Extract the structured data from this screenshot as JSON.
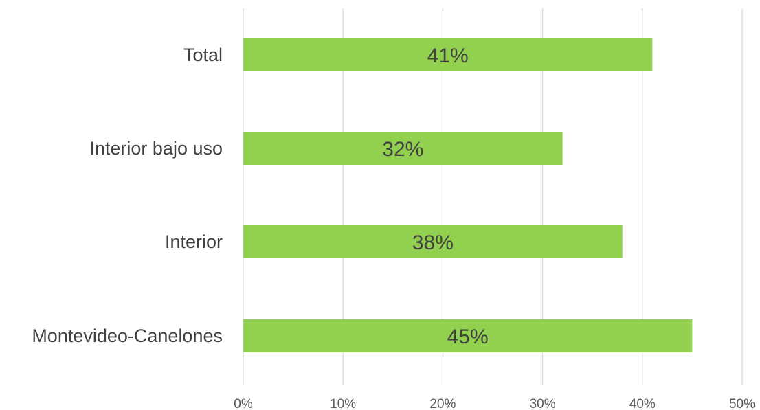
{
  "chart_data": {
    "type": "bar",
    "orientation": "horizontal",
    "categories": [
      "Total",
      "Interior bajo uso",
      "Interior",
      "Montevideo-Canelones"
    ],
    "values": [
      41,
      32,
      38,
      45
    ],
    "data_labels": [
      "41%",
      "32%",
      "38%",
      "45%"
    ],
    "xlim": [
      0,
      50
    ],
    "x_ticks": [
      0,
      10,
      20,
      30,
      40,
      50
    ],
    "x_tick_labels": [
      "0%",
      "10%",
      "20%",
      "30%",
      "40%",
      "50%"
    ],
    "grid": "vertical",
    "legend": "none",
    "colors": {
      "bar": "#92d050",
      "grid": "#d9d9d9",
      "axis": "#d9d9d9"
    }
  }
}
